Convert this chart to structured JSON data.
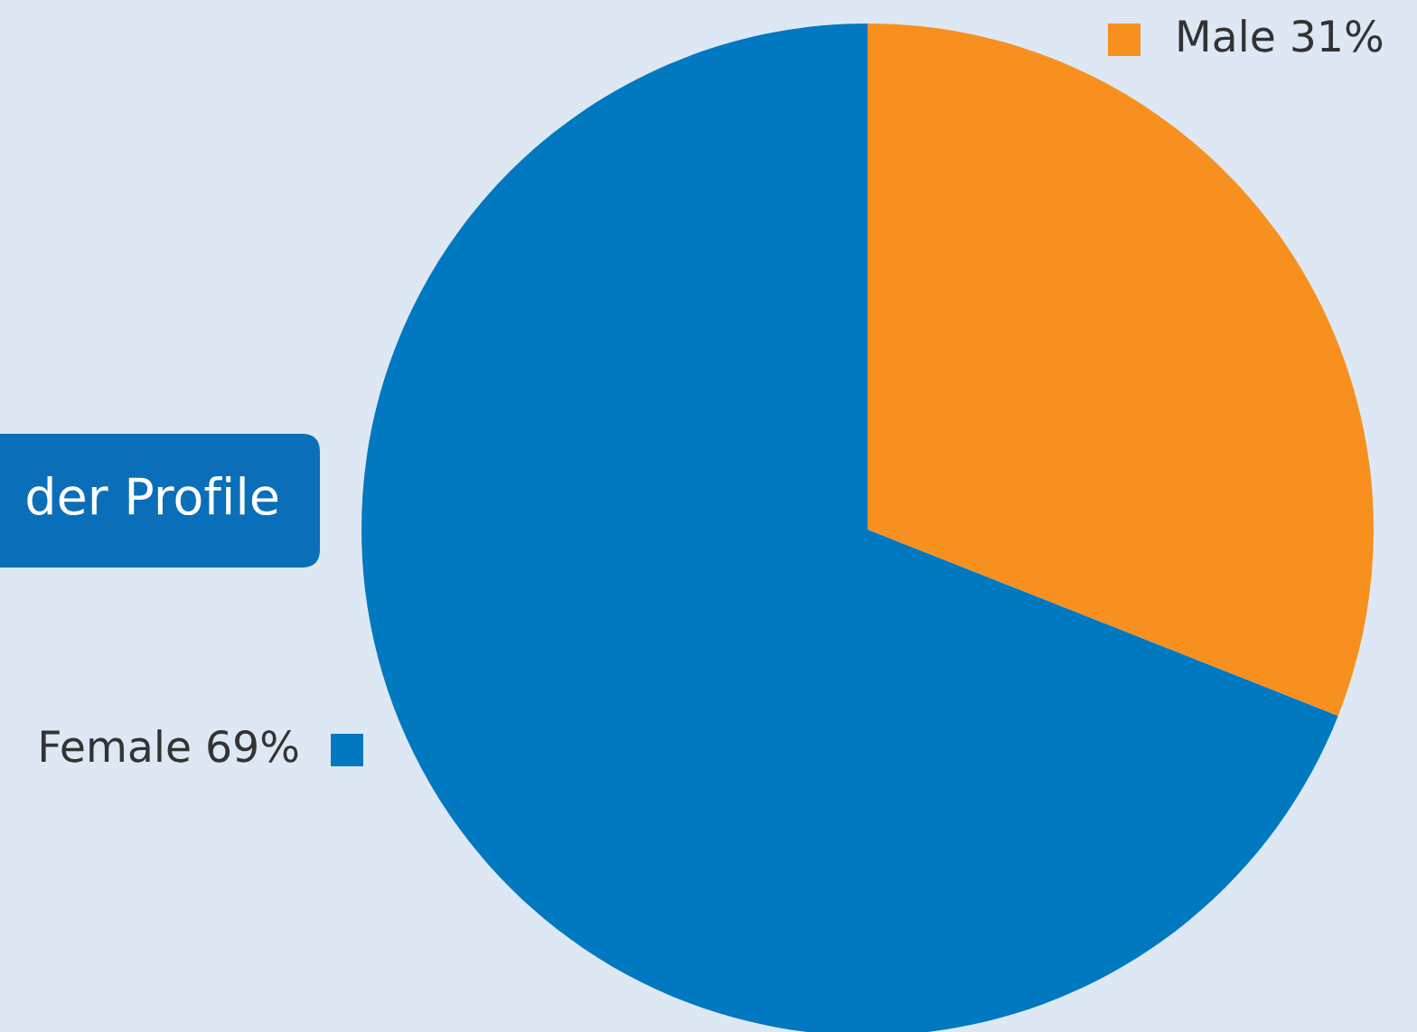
{
  "chart_data": {
    "type": "pie",
    "title": "der Profile",
    "categories": [
      "Male",
      "Female"
    ],
    "values": [
      31,
      69
    ],
    "colors": [
      "#f7901e",
      "#0079c1"
    ],
    "value_labels": [
      "31%",
      "69%"
    ]
  }
}
